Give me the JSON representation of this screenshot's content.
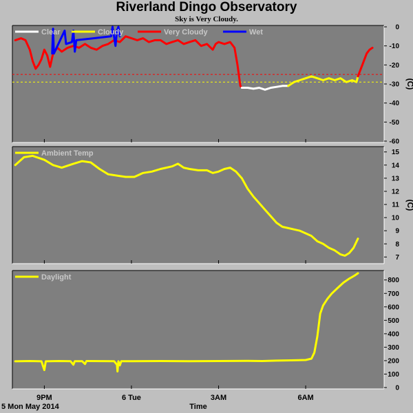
{
  "title": "Riverland Dingo Observatory",
  "subtitle": "Sky is Very Cloudy.",
  "date_label": "5 Mon May 2014",
  "x_axis_label": "Time",
  "x_ticks": [
    {
      "label": "9PM",
      "t": 21.0
    },
    {
      "label": "6 Tue",
      "t": 24.0
    },
    {
      "label": "3AM",
      "t": 27.0
    },
    {
      "label": "6AM",
      "t": 30.0
    }
  ],
  "colors": {
    "panel_bg": "#7f7f7f",
    "clear": "#ffffff",
    "cloudy": "#ffff00",
    "very_cloudy": "#ff0000",
    "wet": "#0000ff",
    "ambient": "#ffff00",
    "daylight": "#ffff00"
  },
  "chart_data": [
    {
      "type": "line",
      "panel": "sky",
      "unit": "(C)",
      "x_range_hours": [
        19.9,
        32.7
      ],
      "ylim": [
        -60,
        0
      ],
      "yticks": [
        0,
        -10,
        -20,
        -30,
        -40,
        -50,
        -60
      ],
      "legend": [
        "Clear",
        "Cloudy",
        "Very Cloudy",
        "Wet"
      ],
      "thresholds": [
        {
          "value": -25,
          "color": "#ff0000"
        },
        {
          "value": -29,
          "color": "#ffff00"
        }
      ],
      "series": [
        {
          "name": "Very Cloudy",
          "color": "#ff0000",
          "points": [
            [
              20.0,
              -7
            ],
            [
              20.2,
              -6
            ],
            [
              20.35,
              -7
            ],
            [
              20.5,
              -12
            ],
            [
              20.6,
              -18
            ],
            [
              20.7,
              -22
            ],
            [
              20.8,
              -20
            ],
            [
              20.9,
              -17
            ],
            [
              21.0,
              -12
            ],
            [
              21.1,
              -15
            ],
            [
              21.2,
              -21
            ],
            [
              21.3,
              -14
            ],
            [
              21.45,
              -11
            ],
            [
              21.6,
              -13
            ],
            [
              21.8,
              -11
            ],
            [
              22.0,
              -10
            ],
            [
              22.2,
              -11
            ],
            [
              22.4,
              -9
            ],
            [
              22.6,
              -11
            ],
            [
              22.8,
              -12
            ],
            [
              23.0,
              -10
            ],
            [
              23.2,
              -9
            ],
            [
              23.4,
              -7
            ],
            [
              23.6,
              -8
            ],
            [
              23.8,
              -5
            ],
            [
              24.0,
              -6
            ],
            [
              24.2,
              -7
            ],
            [
              24.4,
              -6
            ],
            [
              24.6,
              -8
            ],
            [
              24.8,
              -7
            ],
            [
              25.0,
              -7
            ],
            [
              25.2,
              -9
            ],
            [
              25.4,
              -8
            ],
            [
              25.6,
              -7
            ],
            [
              25.8,
              -9
            ],
            [
              26.0,
              -8
            ],
            [
              26.2,
              -7
            ],
            [
              26.4,
              -10
            ],
            [
              26.6,
              -9
            ],
            [
              26.8,
              -12
            ],
            [
              26.9,
              -9
            ],
            [
              27.0,
              -8
            ],
            [
              27.2,
              -9
            ],
            [
              27.4,
              -8
            ],
            [
              27.55,
              -11
            ],
            [
              27.65,
              -20
            ],
            [
              27.75,
              -31
            ],
            [
              27.8,
              -32
            ]
          ]
        },
        {
          "name": "Wet",
          "color": "#0000ff",
          "points": [
            [
              21.27,
              -14
            ],
            [
              21.3,
              -1
            ],
            [
              21.33,
              -14
            ],
            [
              21.7,
              -2
            ],
            [
              21.75,
              -9
            ],
            [
              21.95,
              -8
            ],
            [
              22.0,
              -2
            ],
            [
              22.05,
              -13
            ],
            [
              22.1,
              -7
            ],
            [
              23.3,
              -5
            ],
            [
              23.35,
              0
            ],
            [
              23.45,
              -10
            ],
            [
              23.5,
              -2
            ],
            [
              23.55,
              0
            ],
            [
              23.6,
              -5
            ]
          ]
        },
        {
          "name": "Clear",
          "color": "#ffffff",
          "points": [
            [
              27.8,
              -32
            ],
            [
              28.0,
              -32
            ],
            [
              28.2,
              -32.5
            ],
            [
              28.4,
              -32
            ],
            [
              28.6,
              -33
            ],
            [
              28.8,
              -32
            ],
            [
              29.0,
              -31.5
            ],
            [
              29.2,
              -31
            ],
            [
              29.4,
              -31
            ]
          ]
        },
        {
          "name": "Cloudy",
          "color": "#ffff00",
          "points": [
            [
              29.4,
              -31
            ],
            [
              29.6,
              -29
            ],
            [
              29.8,
              -28
            ],
            [
              30.0,
              -27
            ],
            [
              30.2,
              -26
            ],
            [
              30.4,
              -27
            ],
            [
              30.6,
              -28
            ],
            [
              30.8,
              -27
            ],
            [
              31.0,
              -28
            ],
            [
              31.2,
              -27
            ],
            [
              31.4,
              -29
            ],
            [
              31.6,
              -28
            ],
            [
              31.75,
              -29
            ],
            [
              31.8,
              -26
            ]
          ]
        },
        {
          "name": "Very Cloudy",
          "color": "#ff0000",
          "points": [
            [
              31.8,
              -26
            ],
            [
              31.95,
              -20
            ],
            [
              32.1,
              -14
            ],
            [
              32.2,
              -12
            ],
            [
              32.3,
              -11
            ]
          ]
        }
      ]
    },
    {
      "type": "line",
      "panel": "ambient",
      "unit": "(C)",
      "x_range_hours": [
        19.9,
        32.7
      ],
      "ylim": [
        6.6,
        15.3
      ],
      "yticks": [
        15,
        14,
        13,
        12,
        11,
        10,
        9,
        8,
        7
      ],
      "legend": [
        "Ambient Temp"
      ],
      "series": [
        {
          "name": "Ambient Temp",
          "color": "#ffff00",
          "points": [
            [
              20.0,
              14.0
            ],
            [
              20.3,
              14.6
            ],
            [
              20.6,
              14.7
            ],
            [
              21.0,
              14.4
            ],
            [
              21.3,
              14.0
            ],
            [
              21.6,
              13.8
            ],
            [
              22.0,
              14.1
            ],
            [
              22.3,
              14.3
            ],
            [
              22.6,
              14.2
            ],
            [
              22.9,
              13.7
            ],
            [
              23.2,
              13.3
            ],
            [
              23.5,
              13.2
            ],
            [
              23.8,
              13.1
            ],
            [
              24.1,
              13.1
            ],
            [
              24.4,
              13.4
            ],
            [
              24.7,
              13.5
            ],
            [
              25.0,
              13.7
            ],
            [
              25.2,
              13.8
            ],
            [
              25.4,
              13.9
            ],
            [
              25.6,
              14.1
            ],
            [
              25.8,
              13.8
            ],
            [
              26.0,
              13.7
            ],
            [
              26.3,
              13.6
            ],
            [
              26.6,
              13.6
            ],
            [
              26.8,
              13.4
            ],
            [
              27.0,
              13.5
            ],
            [
              27.2,
              13.7
            ],
            [
              27.4,
              13.8
            ],
            [
              27.6,
              13.5
            ],
            [
              27.8,
              13.0
            ],
            [
              28.0,
              12.2
            ],
            [
              28.2,
              11.6
            ],
            [
              28.4,
              11.1
            ],
            [
              28.6,
              10.6
            ],
            [
              28.8,
              10.1
            ],
            [
              29.0,
              9.6
            ],
            [
              29.2,
              9.3
            ],
            [
              29.4,
              9.2
            ],
            [
              29.6,
              9.1
            ],
            [
              29.8,
              9.0
            ],
            [
              30.0,
              8.8
            ],
            [
              30.2,
              8.6
            ],
            [
              30.4,
              8.2
            ],
            [
              30.6,
              8.0
            ],
            [
              30.8,
              7.7
            ],
            [
              31.0,
              7.5
            ],
            [
              31.2,
              7.2
            ],
            [
              31.35,
              7.1
            ],
            [
              31.5,
              7.3
            ],
            [
              31.65,
              7.7
            ],
            [
              31.8,
              8.4
            ]
          ]
        }
      ]
    },
    {
      "type": "line",
      "panel": "daylight",
      "unit": "",
      "x_range_hours": [
        19.9,
        32.7
      ],
      "ylim": [
        0,
        860
      ],
      "yticks": [
        800,
        700,
        600,
        500,
        400,
        300,
        200,
        100,
        0
      ],
      "legend": [
        "Daylight"
      ],
      "series": [
        {
          "name": "Daylight",
          "color": "#ffff00",
          "points": [
            [
              20.0,
              195
            ],
            [
              20.5,
              197
            ],
            [
              20.9,
              195
            ],
            [
              21.0,
              130
            ],
            [
              21.05,
              195
            ],
            [
              21.5,
              197
            ],
            [
              21.9,
              196
            ],
            [
              22.0,
              170
            ],
            [
              22.05,
              196
            ],
            [
              22.3,
              196
            ],
            [
              22.4,
              175
            ],
            [
              22.45,
              197
            ],
            [
              23.4,
              196
            ],
            [
              23.5,
              170
            ],
            [
              23.52,
              120
            ],
            [
              23.55,
              195
            ],
            [
              23.6,
              165
            ],
            [
              23.65,
              196
            ],
            [
              24.0,
              196
            ],
            [
              25.0,
              197
            ],
            [
              26.0,
              196
            ],
            [
              27.0,
              197
            ],
            [
              28.0,
              198
            ],
            [
              28.5,
              197
            ],
            [
              29.0,
              200
            ],
            [
              29.5,
              202
            ],
            [
              30.0,
              205
            ],
            [
              30.2,
              215
            ],
            [
              30.3,
              260
            ],
            [
              30.4,
              380
            ],
            [
              30.5,
              550
            ],
            [
              30.6,
              610
            ],
            [
              30.75,
              660
            ],
            [
              30.9,
              700
            ],
            [
              31.1,
              740
            ],
            [
              31.3,
              780
            ],
            [
              31.5,
              810
            ],
            [
              31.7,
              835
            ],
            [
              31.8,
              850
            ]
          ]
        }
      ]
    }
  ]
}
